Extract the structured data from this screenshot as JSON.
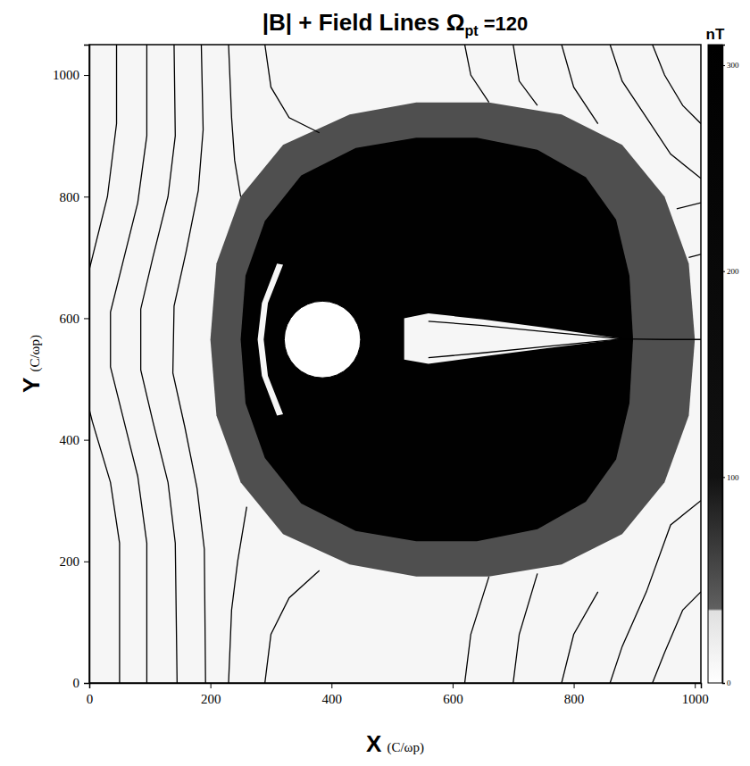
{
  "chart_data": {
    "type": "field_map",
    "title": "|B| + Field Lines  Ω",
    "title_subscript": "pt",
    "title_suffix": " =120",
    "xlabel": "X",
    "xlabel_unit": "(C/ωp)",
    "ylabel": "Y",
    "ylabel_unit": "(C/ωp)",
    "xlim": [
      0,
      1010
    ],
    "xticks": [
      0,
      200,
      400,
      600,
      800,
      1000
    ],
    "ylim": [
      0,
      1050
    ],
    "yticks": [
      0,
      200,
      400,
      600,
      800,
      1000
    ],
    "background_level": 10,
    "regions": [
      {
        "level": 50,
        "x": [
          200,
          210,
          250,
          320,
          430,
          540,
          660,
          780,
          880,
          950,
          990,
          1000,
          990,
          950,
          880,
          780,
          660,
          540,
          430,
          320,
          250,
          210
        ],
        "y": [
          565,
          690,
          800,
          885,
          935,
          955,
          955,
          935,
          885,
          800,
          690,
          565,
          440,
          330,
          245,
          195,
          175,
          175,
          195,
          245,
          330,
          440
        ]
      },
      {
        "level": 300,
        "x": [
          250,
          258,
          290,
          350,
          440,
          540,
          640,
          740,
          820,
          870,
          892,
          898,
          892,
          870,
          820,
          740,
          640,
          540,
          440,
          350,
          290,
          258
        ],
        "y": [
          565,
          670,
          760,
          835,
          880,
          897,
          897,
          877,
          832,
          762,
          670,
          565,
          460,
          368,
          298,
          253,
          233,
          233,
          250,
          295,
          370,
          460
        ]
      },
      {
        "level": 10,
        "x": [
          310,
          285,
          278,
          285,
          310,
          320,
          295,
          288,
          295,
          320
        ],
        "y": [
          440,
          505,
          565,
          625,
          690,
          688,
          625,
          565,
          505,
          442
        ]
      },
      {
        "level": 10,
        "x": [
          520,
          560,
          650,
          750,
          880,
          750,
          650,
          560,
          520
        ],
        "y": [
          600,
          608,
          598,
          585,
          566,
          550,
          537,
          525,
          532
        ]
      }
    ],
    "obstacle": {
      "x": 385,
      "y": 565,
      "r": 63
    },
    "field_lines": [
      {
        "x": [
          45,
          45,
          30,
          5,
          -15,
          -15,
          5,
          35,
          50,
          50
        ],
        "y": [
          1050,
          920,
          800,
          700,
          620,
          510,
          430,
          330,
          230,
          0
        ]
      },
      {
        "x": [
          95,
          95,
          80,
          55,
          35,
          35,
          55,
          80,
          95,
          95
        ],
        "y": [
          1050,
          900,
          790,
          690,
          610,
          520,
          440,
          340,
          230,
          0
        ]
      },
      {
        "x": [
          140,
          142,
          130,
          105,
          85,
          85,
          105,
          130,
          142,
          145
        ],
        "y": [
          1050,
          900,
          800,
          700,
          615,
          515,
          430,
          330,
          230,
          0
        ]
      },
      {
        "x": [
          185,
          188,
          180,
          160,
          140,
          138,
          158,
          178,
          190,
          192
        ],
        "y": [
          1050,
          910,
          810,
          710,
          620,
          510,
          420,
          320,
          220,
          0
        ]
      },
      {
        "x": [
          230,
          235,
          240,
          250
        ],
        "y": [
          1050,
          930,
          860,
          800
        ]
      },
      {
        "x": [
          230,
          235,
          245,
          260
        ],
        "y": [
          0,
          120,
          200,
          290
        ]
      },
      {
        "x": [
          290,
          300,
          330,
          380
        ],
        "y": [
          1050,
          980,
          930,
          905
        ]
      },
      {
        "x": [
          620,
          630,
          660
        ],
        "y": [
          1050,
          1000,
          955
        ]
      },
      {
        "x": [
          700,
          710,
          740
        ],
        "y": [
          1050,
          990,
          950
        ]
      },
      {
        "x": [
          780,
          800,
          840
        ],
        "y": [
          1050,
          980,
          920
        ]
      },
      {
        "x": [
          290,
          300,
          330,
          380
        ],
        "y": [
          0,
          80,
          140,
          185
        ]
      },
      {
        "x": [
          620,
          630,
          660
        ],
        "y": [
          0,
          80,
          175
        ]
      },
      {
        "x": [
          700,
          710,
          740
        ],
        "y": [
          0,
          80,
          180
        ]
      },
      {
        "x": [
          780,
          800,
          840
        ],
        "y": [
          0,
          80,
          150
        ]
      },
      {
        "x": [
          860,
          880,
          920,
          960,
          1010
        ],
        "y": [
          1050,
          990,
          930,
          870,
          830
        ]
      },
      {
        "x": [
          930,
          950,
          980,
          1010
        ],
        "y": [
          1050,
          1000,
          950,
          920
        ]
      },
      {
        "x": [
          970,
          1010
        ],
        "y": [
          780,
          790
        ]
      },
      {
        "x": [
          990,
          1010
        ],
        "y": [
          700,
          705
        ]
      },
      {
        "x": [
          860,
          880,
          920,
          960,
          1010
        ],
        "y": [
          0,
          60,
          150,
          260,
          300
        ]
      },
      {
        "x": [
          930,
          950,
          980,
          1010
        ],
        "y": [
          0,
          50,
          120,
          150
        ]
      },
      {
        "x": [
          560,
          650,
          750,
          880,
          750,
          650,
          560
        ],
        "y": [
          595,
          588,
          578,
          566,
          553,
          543,
          535
        ]
      },
      {
        "x": [
          880,
          950,
          1010
        ],
        "y": [
          566,
          565,
          565
        ]
      }
    ],
    "colorbar": {
      "label": "nT",
      "lim": [
        0,
        310
      ],
      "ticks": [
        0,
        100,
        200,
        300
      ],
      "stops": [
        {
          "value": 0,
          "color": "#ffffff"
        },
        {
          "value": 35,
          "color": "#e0e0e0"
        },
        {
          "value": 36,
          "color": "#606060"
        },
        {
          "value": 100,
          "color": "#111111"
        },
        {
          "value": 310,
          "color": "#000000"
        }
      ]
    }
  }
}
